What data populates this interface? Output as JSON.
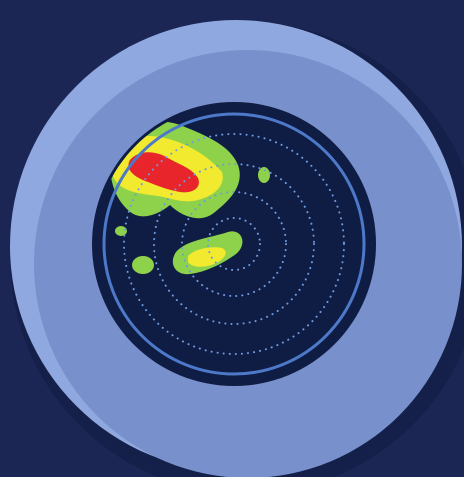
{
  "illustration": {
    "icon": "weather-radar-icon",
    "colors": {
      "background": "#1b2655",
      "outer_shadow": "#142049",
      "bezel_light": "#8fa8df",
      "bezel_mid": "#7890cc",
      "screen": "#0f1d45",
      "screen_ring": "#4d79c9",
      "grid_rings": "#6e9be0",
      "precip_light": "#8ed14b",
      "precip_moderate": "#f2ea2e",
      "precip_heavy": "#e8252a"
    }
  }
}
